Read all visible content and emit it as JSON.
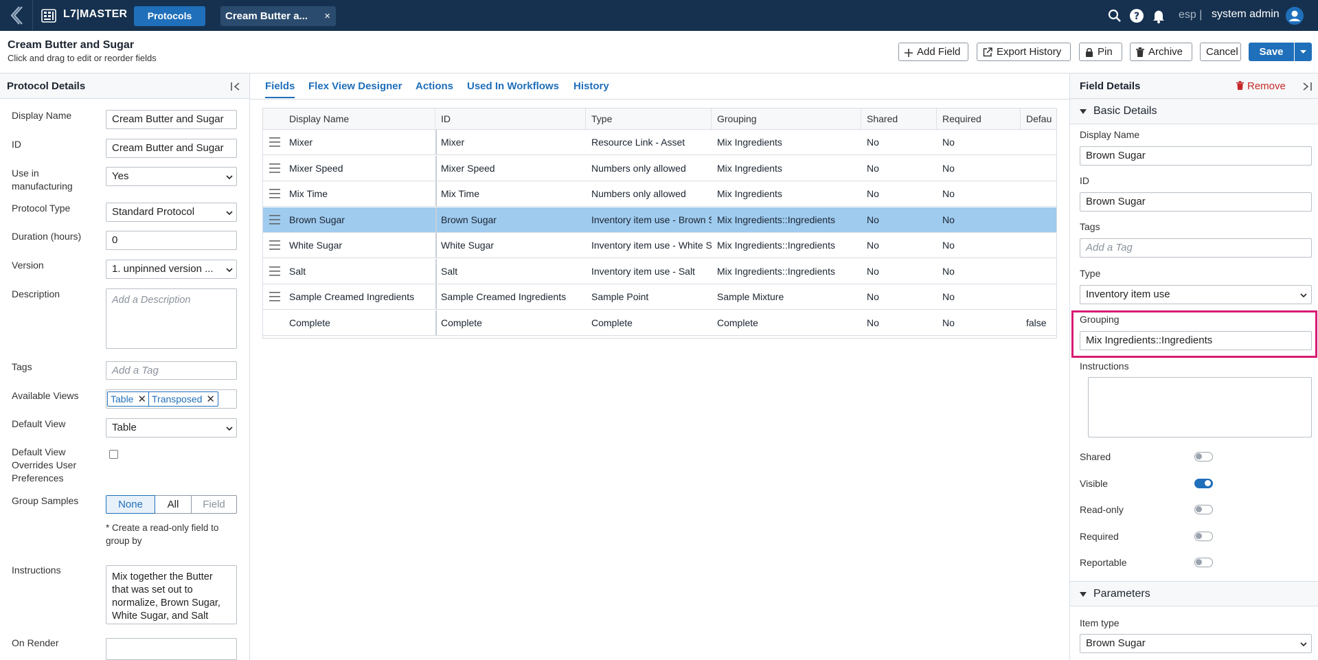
{
  "topbar": {
    "app_name": "L7|MASTER",
    "nav_protocols": "Protocols",
    "doc_tab": "Cream Butter a...",
    "doc_tab_close": "×",
    "lang": "esp |",
    "user": "system admin"
  },
  "header": {
    "title": "Cream Butter and Sugar",
    "subtitle": "Click and drag to edit or reorder fields",
    "buttons": {
      "add_field": "Add Field",
      "export_history": "Export History",
      "pin": "Pin",
      "archive": "Archive",
      "cancel": "Cancel",
      "save": "Save"
    }
  },
  "protocol_details": {
    "title": "Protocol Details",
    "display_name_label": "Display Name",
    "display_name_value": "Cream Butter and Sugar",
    "id_label": "ID",
    "id_value": "Cream Butter and Sugar",
    "use_in_manufacturing_label": "Use in manufacturing",
    "use_in_manufacturing_value": "Yes",
    "protocol_type_label": "Protocol Type",
    "protocol_type_value": "Standard Protocol",
    "duration_label": "Duration (hours)",
    "duration_value": "0",
    "version_label": "Version",
    "version_value": "1. unpinned version ...",
    "description_label": "Description",
    "description_placeholder": "Add a Description",
    "tags_label": "Tags",
    "tags_placeholder": "Add a Tag",
    "available_views_label": "Available Views",
    "available_views": [
      "Table",
      "Transposed"
    ],
    "chip_remove": "✕",
    "default_view_label": "Default View",
    "default_view_value": "Table",
    "default_view_overrides_label": "Default View Overrides User Preferences",
    "group_samples_label": "Group Samples",
    "group_samples_options": [
      "None",
      "All",
      "Field"
    ],
    "group_samples_note": "* Create a read-only field to group by",
    "instructions_label": "Instructions",
    "instructions_value": "Mix together the Butter that was set out to normalize, Brown Sugar, White Sugar, and Salt",
    "on_render_label": "On Render"
  },
  "tabs": [
    "Fields",
    "Flex View Designer",
    "Actions",
    "Used In Workflows",
    "History"
  ],
  "fields_table": {
    "columns": [
      "Display Name",
      "ID",
      "Type",
      "Grouping",
      "Shared",
      "Required",
      "Defau"
    ],
    "rows": [
      [
        "Mixer",
        "Mixer",
        "Resource Link - Asset",
        "Mix Ingredients",
        "No",
        "No",
        ""
      ],
      [
        "Mixer Speed",
        "Mixer Speed",
        "Numbers only allowed",
        "Mix Ingredients",
        "No",
        "No",
        ""
      ],
      [
        "Mix Time",
        "Mix Time",
        "Numbers only allowed",
        "Mix Ingredients",
        "No",
        "No",
        ""
      ],
      [
        "Brown Sugar",
        "Brown Sugar",
        "Inventory item use - Brown S",
        "Mix Ingredients::Ingredients",
        "No",
        "No",
        ""
      ],
      [
        "White Sugar",
        "White Sugar",
        "Inventory item use - White S",
        "Mix Ingredients::Ingredients",
        "No",
        "No",
        ""
      ],
      [
        "Salt",
        "Salt",
        "Inventory item use - Salt",
        "Mix Ingredients::Ingredients",
        "No",
        "No",
        ""
      ],
      [
        "Sample Creamed Ingredients",
        "Sample Creamed Ingredients",
        "Sample Point",
        "Sample Mixture",
        "No",
        "No",
        ""
      ],
      [
        "Complete",
        "Complete",
        "Complete",
        "Complete",
        "No",
        "No",
        "false"
      ]
    ],
    "selected_row": 3
  },
  "field_details": {
    "title": "Field Details",
    "remove": "Remove",
    "basic_details": "Basic Details",
    "display_name_label": "Display Name",
    "display_name_value": "Brown Sugar",
    "id_label": "ID",
    "id_value": "Brown Sugar",
    "tags_label": "Tags",
    "tags_placeholder": "Add a Tag",
    "type_label": "Type",
    "type_value": "Inventory item use",
    "grouping_label": "Grouping",
    "grouping_value": "Mix Ingredients::Ingredients",
    "instructions_label": "Instructions",
    "toggles": [
      {
        "label": "Shared",
        "on": false
      },
      {
        "label": "Visible",
        "on": true
      },
      {
        "label": "Read-only",
        "on": false
      },
      {
        "label": "Required",
        "on": false
      },
      {
        "label": "Reportable",
        "on": false
      }
    ],
    "parameters": "Parameters",
    "item_type_label": "Item type",
    "item_type_value": "Brown Sugar"
  },
  "colors": {
    "topbar": "#16314f",
    "accent": "#1f6fba",
    "selected_row": "#9fcbef",
    "highlight": "#d81b73",
    "danger": "#c62828"
  },
  "icons": [
    "back-chevron-icon",
    "grid-logo-icon",
    "search-icon",
    "help-icon",
    "bell-icon",
    "user-avatar-icon",
    "plus-icon",
    "export-icon",
    "lock-icon",
    "trash-icon",
    "chevron-down-icon",
    "collapse-panel-icon",
    "drag-handle-icon",
    "triangle-down-icon"
  ]
}
